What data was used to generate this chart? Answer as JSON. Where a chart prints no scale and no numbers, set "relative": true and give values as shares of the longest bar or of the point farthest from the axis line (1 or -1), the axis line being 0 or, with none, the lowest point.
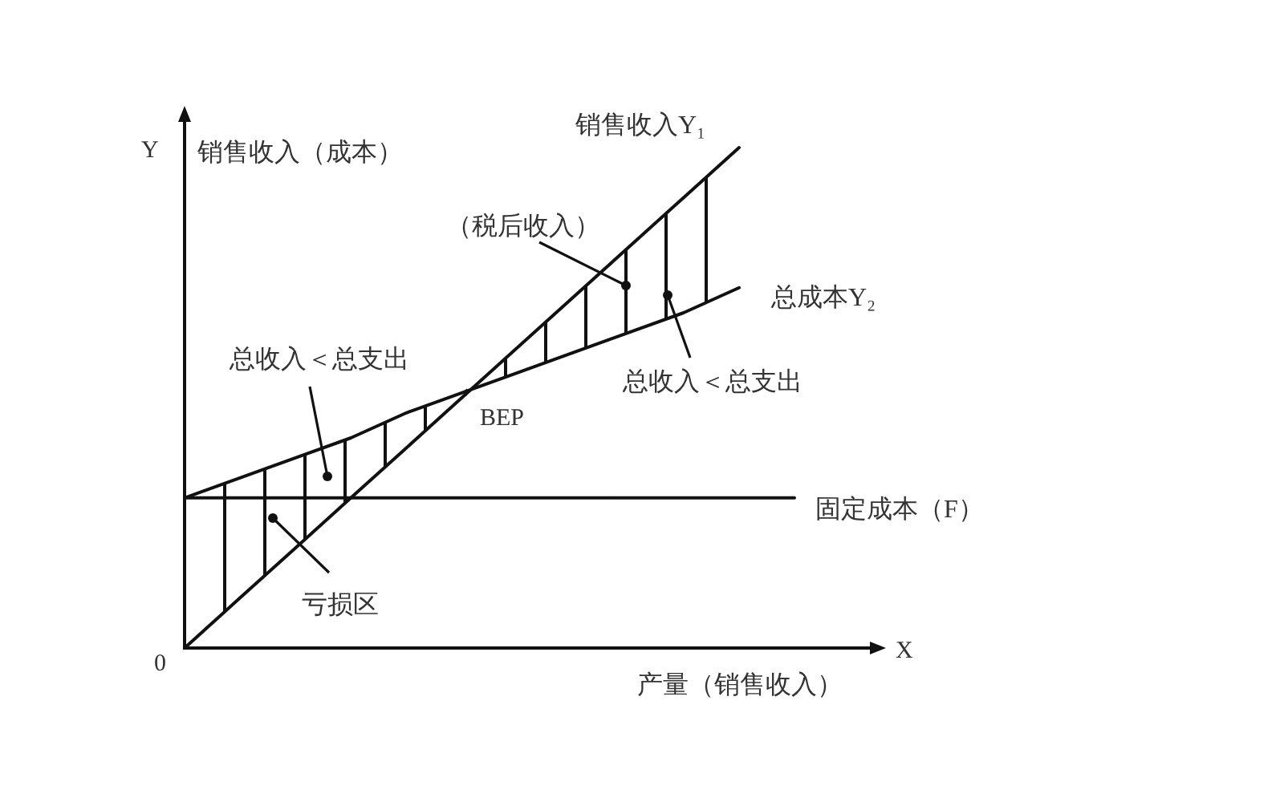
{
  "chart_data": {
    "type": "line",
    "relative": true,
    "line_style": "solid",
    "categories": [
      null,
      null,
      null,
      null,
      null,
      null,
      null,
      null,
      null,
      null,
      null,
      null
    ],
    "series": [
      {
        "name": "销售收入Y₁",
        "color": "#111111",
        "values": [
          0,
          0.1,
          0.2,
          0.3,
          0.4,
          0.5,
          0.6,
          0.7,
          0.8,
          0.9,
          1.0,
          null
        ]
      },
      {
        "name": "总成本Y₂",
        "color": "#111111",
        "values": [
          0.3,
          0.34,
          0.38,
          0.42,
          0.47,
          0.51,
          0.55,
          0.59,
          0.63,
          0.67,
          0.72,
          null
        ],
        "lower": [
          0,
          0.1,
          0.2,
          0.3,
          0.4,
          0.5,
          0.55,
          0.59,
          0.63,
          0.67,
          0.72,
          null
        ],
        "upper": [
          0.3,
          0.34,
          0.38,
          0.42,
          0.47,
          0.51,
          0.6,
          0.7,
          0.8,
          0.9,
          1.0,
          null
        ]
      },
      {
        "name": "固定成本（F）",
        "color": "#111111",
        "values": [
          0.3,
          0.3,
          0.3,
          0.3,
          0.3,
          0.3,
          0.3,
          0.3,
          0.3,
          0.3,
          0.3,
          0.3
        ]
      }
    ],
    "xlabel": "产量（销售收入）",
    "ylabel": "销售收入（成本）",
    "annotations": [
      "（税后收入）",
      "总收入＜总支出",
      "总收入＜总支出",
      "亏损区",
      "BEP",
      "0",
      "Y",
      "X"
    ]
  }
}
